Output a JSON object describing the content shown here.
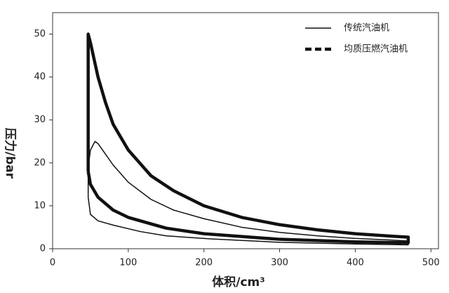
{
  "chart_data": {
    "type": "line",
    "x_label": "体积/cm³",
    "y_label": "压力/bar",
    "xlim": [
      0,
      510
    ],
    "xticks": [
      0,
      100,
      200,
      300,
      400,
      500
    ],
    "ylim": [
      0,
      55
    ],
    "yticks": [
      0,
      10,
      20,
      30,
      40,
      50
    ],
    "legend": "upper right",
    "series": [
      {
        "name": "传统汽油机",
        "color": "#111111",
        "width": 1.5,
        "x": [
          47,
          50,
          56,
          60,
          70,
          80,
          100,
          130,
          160,
          200,
          250,
          300,
          350,
          400,
          450,
          470,
          470,
          400,
          300,
          209,
          150,
          116,
          80,
          60,
          50,
          47,
          47
        ],
        "values": [
          19,
          23,
          25,
          24.5,
          22,
          19.5,
          15.5,
          11.5,
          9,
          7,
          5,
          3.8,
          3,
          2.4,
          2,
          1.8,
          0.9,
          1.1,
          1.5,
          2.3,
          3,
          4,
          5.5,
          6.5,
          8,
          12,
          19
        ]
      },
      {
        "name": "均质压燃汽油机",
        "color": "#111111",
        "width": 4.5,
        "x": [
          47,
          47,
          50,
          55,
          60,
          70,
          80,
          100,
          130,
          160,
          200,
          250,
          300,
          350,
          400,
          450,
          470,
          470,
          400,
          300,
          200,
          150,
          100,
          80,
          60,
          50,
          47
        ],
        "values": [
          18,
          50,
          48,
          44,
          40,
          34,
          29,
          23,
          17,
          13.5,
          10,
          7.3,
          5.6,
          4.4,
          3.5,
          2.9,
          2.7,
          1.4,
          1.6,
          2.2,
          3.5,
          4.8,
          7.3,
          9,
          12,
          15,
          18
        ]
      }
    ]
  }
}
